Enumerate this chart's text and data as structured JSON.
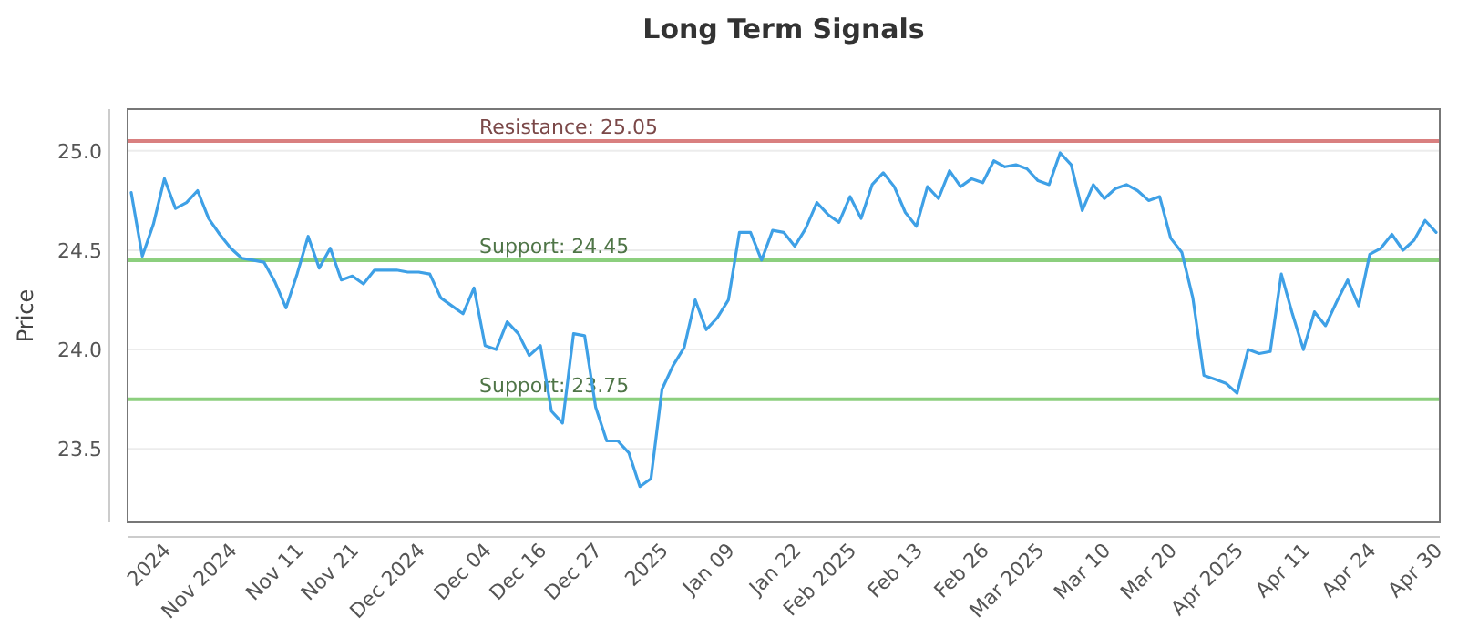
{
  "chart_data": {
    "type": "line",
    "title": "Long Term Signals",
    "ylabel": "Price",
    "categories": [
      null,
      null,
      null,
      "2024",
      null,
      null,
      null,
      null,
      null,
      "Nov 2024",
      null,
      null,
      null,
      null,
      null,
      "Nov 11",
      null,
      null,
      null,
      null,
      "Nov 21",
      null,
      null,
      null,
      null,
      null,
      "Dec 2024",
      null,
      null,
      null,
      null,
      null,
      "Dec 04",
      null,
      null,
      null,
      null,
      "Dec 16",
      null,
      null,
      null,
      null,
      "Dec 27",
      null,
      null,
      null,
      null,
      null,
      "2025",
      null,
      null,
      null,
      null,
      null,
      "Jan 09",
      null,
      null,
      null,
      null,
      null,
      "Jan 22",
      null,
      null,
      null,
      null,
      "Feb 2025",
      null,
      null,
      null,
      null,
      null,
      "Feb 13",
      null,
      null,
      null,
      null,
      null,
      "Feb 26",
      null,
      null,
      null,
      null,
      "Mar 2025",
      null,
      null,
      null,
      null,
      null,
      "Mar 10",
      null,
      null,
      null,
      null,
      null,
      "Mar 20",
      null,
      null,
      null,
      null,
      null,
      "Apr 2025",
      null,
      null,
      null,
      null,
      null,
      "Apr 11",
      null,
      null,
      null,
      null,
      null,
      "Apr 24",
      null,
      null,
      null,
      null,
      null,
      "Apr 30"
    ],
    "series": [
      {
        "color": "#3ea0e6",
        "values": [
          24.79,
          24.47,
          24.63,
          24.86,
          24.71,
          24.74,
          24.8,
          24.66,
          24.58,
          24.51,
          24.46,
          24.45,
          24.44,
          24.34,
          24.21,
          24.38,
          24.57,
          24.41,
          24.51,
          24.35,
          24.37,
          24.33,
          24.4,
          24.4,
          24.4,
          24.39,
          24.39,
          24.38,
          24.26,
          24.22,
          24.18,
          24.31,
          24.02,
          24.0,
          24.14,
          24.08,
          23.97,
          24.02,
          23.69,
          23.63,
          24.08,
          24.07,
          23.71,
          23.54,
          23.54,
          23.48,
          23.31,
          23.35,
          23.8,
          23.92,
          24.01,
          24.25,
          24.1,
          24.16,
          24.25,
          24.59,
          24.59,
          24.45,
          24.6,
          24.59,
          24.52,
          24.61,
          24.74,
          24.68,
          24.64,
          24.77,
          24.66,
          24.83,
          24.89,
          24.82,
          24.69,
          24.62,
          24.82,
          24.76,
          24.9,
          24.82,
          24.86,
          24.84,
          24.95,
          24.92,
          24.93,
          24.91,
          24.85,
          24.83,
          24.99,
          24.93,
          24.7,
          24.83,
          24.76,
          24.81,
          24.83,
          24.8,
          24.75,
          24.77,
          24.56,
          24.49,
          24.26,
          23.87,
          23.85,
          23.83,
          23.78,
          24.0,
          23.98,
          23.99,
          24.38,
          24.18,
          24.0,
          24.19,
          24.12,
          24.24,
          24.35,
          24.22,
          24.48,
          24.51,
          24.58,
          24.5,
          24.55,
          24.65,
          24.59
        ]
      }
    ],
    "ylim": [
      23.13,
      25.21
    ],
    "yticks": [
      {
        "value": 23.5,
        "label": "23.5"
      },
      {
        "value": 24,
        "label": "24.0"
      },
      {
        "value": 24.5,
        "label": "24.5"
      },
      {
        "value": 25,
        "label": "25.0"
      }
    ],
    "grid": "y",
    "marker": "none",
    "line_style": "solid",
    "ref_lines": [
      {
        "axis": "y",
        "value": 25.05,
        "label": "Resistance: 25.05",
        "color": "#d98080"
      },
      {
        "axis": "y",
        "value": 24.45,
        "label": "Support: 24.45",
        "color": "#8ccf7e"
      },
      {
        "axis": "y",
        "value": 23.75,
        "label": "Support: 23.75",
        "color": "#8ccf7e"
      }
    ]
  }
}
